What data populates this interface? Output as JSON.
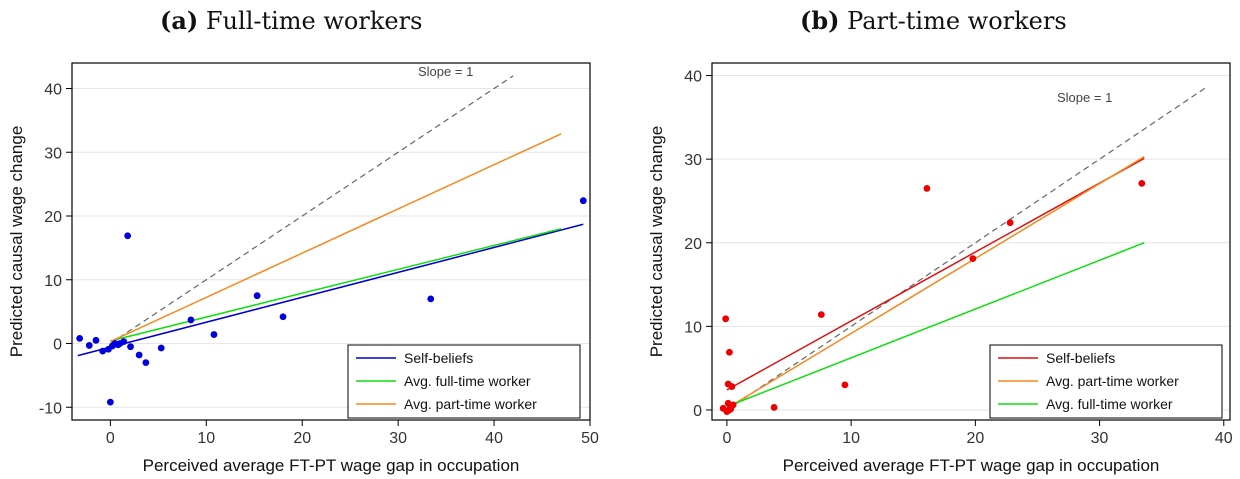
{
  "panels": [
    {
      "label": "(a)",
      "title": "Full-time workers",
      "chart_data": {
        "type": "scatter",
        "xlabel": "Perceived average FT-PT wage gap in occupation",
        "ylabel": "Predicted causal wage change",
        "xlim": [
          -4,
          50
        ],
        "ylim": [
          -12,
          44
        ],
        "xticks": [
          0,
          10,
          20,
          30,
          40,
          50
        ],
        "yticks": [
          -10,
          0,
          10,
          20,
          30,
          40
        ],
        "grid": "horizontal",
        "legend_position": "bottom-right",
        "annotation": "Slope = 1",
        "points": {
          "color": "#0000dd",
          "x": [
            -3.2,
            -2.2,
            -1.5,
            -0.8,
            -0.2,
            0,
            0.2,
            0.5,
            0.8,
            1.0,
            1.4,
            1.8,
            2.1,
            3.0,
            3.7,
            5.3,
            8.4,
            10.8,
            15.3,
            18.0,
            33.4,
            49.3
          ],
          "y": [
            0.8,
            -0.3,
            0.5,
            -1.2,
            -0.9,
            -9.2,
            -0.4,
            0.0,
            -0.2,
            0.0,
            0.3,
            16.9,
            -0.5,
            -1.8,
            -3.0,
            -0.7,
            3.7,
            1.4,
            7.5,
            4.2,
            7.0,
            22.4
          ]
        },
        "series": [
          {
            "name": "Self-beliefs",
            "color": "#0000cc",
            "x": [
              -3.4,
              49.3
            ],
            "y": [
              -1.9,
              18.7
            ]
          },
          {
            "name": "Avg. full-time worker",
            "color": "#11dd11",
            "x": [
              0,
              47
            ],
            "y": [
              0.4,
              18.0
            ]
          },
          {
            "name": "Avg. part-time worker",
            "color": "#f5881f",
            "x": [
              0,
              47
            ],
            "y": [
              0.3,
              32.9
            ]
          }
        ],
        "reference_line": {
          "x": [
            0,
            42
          ],
          "y": [
            0,
            42
          ],
          "color": "#666666"
        }
      }
    },
    {
      "label": "(b)",
      "title": "Part-time workers",
      "chart_data": {
        "type": "scatter",
        "xlabel": "Perceived average FT-PT wage gap in occupation",
        "ylabel": "Predicted causal wage change",
        "xlim": [
          -1.2,
          40.5
        ],
        "ylim": [
          -1.2,
          41.5
        ],
        "xticks": [
          0,
          10,
          20,
          30,
          40
        ],
        "yticks": [
          0,
          10,
          20,
          30,
          40
        ],
        "grid": "horizontal",
        "legend_position": "bottom-right",
        "annotation": "Slope = 1",
        "points": {
          "color": "#ee0000",
          "x": [
            -0.3,
            -0.1,
            0.0,
            0.1,
            0.2,
            0.4,
            0.5,
            0.2,
            0.3,
            0.1,
            0.3,
            3.8,
            7.6,
            9.5,
            16.1,
            19.8,
            22.8,
            33.4
          ],
          "y": [
            0.2,
            10.9,
            -0.2,
            3.1,
            0.0,
            2.8,
            0.6,
            6.9,
            0.4,
            0.8,
            0.1,
            0.3,
            11.4,
            3.0,
            26.5,
            18.1,
            22.4,
            27.1
          ]
        },
        "series": [
          {
            "name": "Self-beliefs",
            "color": "#dd1111",
            "x": [
              0,
              33.6
            ],
            "y": [
              2.4,
              30.1
            ]
          },
          {
            "name": "Avg. part-time worker",
            "color": "#f5881f",
            "x": [
              0,
              33.6
            ],
            "y": [
              0.2,
              30.3
            ]
          },
          {
            "name": "Avg. full-time worker",
            "color": "#11dd11",
            "x": [
              0,
              33.6
            ],
            "y": [
              0.4,
              20.0
            ]
          }
        ],
        "reference_line": {
          "x": [
            0,
            38.5
          ],
          "y": [
            0,
            38.5
          ],
          "color": "#666666"
        }
      }
    }
  ]
}
